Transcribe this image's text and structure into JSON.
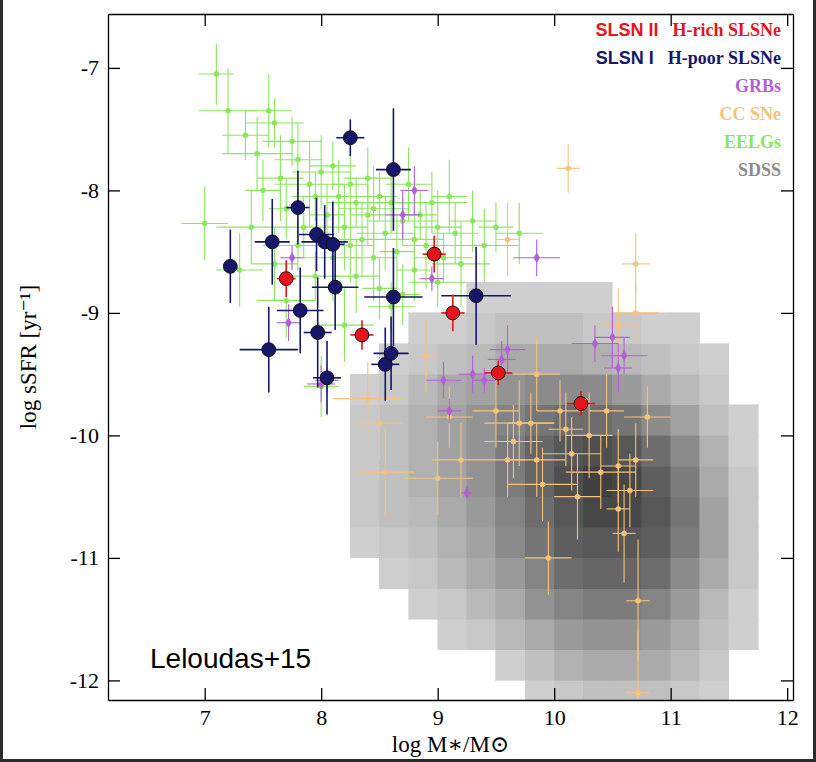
{
  "chart_data": {
    "type": "scatter",
    "xlabel": "log M∗/M⊙",
    "ylabel": "log sSFR [yr⁻¹]",
    "annotations": [
      "Leloudas+15",
      "SLSN II",
      "SLSN I"
    ],
    "xlim": [
      6.17,
      12.05
    ],
    "ylim": [
      -12.16,
      -6.56
    ],
    "xticks": [
      7,
      8,
      9,
      10,
      11,
      12
    ],
    "yticks": [
      -12,
      -11,
      -10,
      -9,
      -8,
      -7
    ],
    "grid": false,
    "legend": "upper right",
    "series": [
      {
        "name": "H-rich SLSNe",
        "color": "#e8141c",
        "marker": "circle",
        "x": [
          7.7,
          8.35,
          8.97,
          9.13,
          9.52,
          10.23
        ],
        "values": [
          -8.72,
          -9.18,
          -8.52,
          -9.0,
          -9.49,
          -9.74
        ],
        "xerr": [
          0.08,
          0.1,
          0.1,
          0.1,
          0.12,
          0.12
        ],
        "yerr": [
          0.15,
          0.12,
          0.15,
          0.15,
          0.1,
          0.1
        ]
      },
      {
        "name": "H-poor SLSNe",
        "color": "#16166b",
        "marker": "circle",
        "x": [
          7.22,
          7.58,
          7.8,
          7.82,
          7.55,
          7.96,
          8.03,
          8.1,
          8.12,
          7.97,
          8.05,
          8.25,
          8.62,
          8.62,
          8.55,
          8.6,
          9.33
        ],
        "values": [
          -8.62,
          -8.42,
          -8.14,
          -8.98,
          -9.3,
          -8.36,
          -8.42,
          -8.44,
          -8.79,
          -9.16,
          -9.53,
          -7.57,
          -7.83,
          -8.87,
          -9.42,
          -9.33,
          -8.86
        ],
        "xerr": [
          0.05,
          0.15,
          0.1,
          0.2,
          0.25,
          0.15,
          0.2,
          0.1,
          0.2,
          0.12,
          0.12,
          0.12,
          0.15,
          0.25,
          0.12,
          0.15,
          0.3
        ],
        "yerr": [
          0.3,
          0.35,
          0.3,
          0.35,
          0.35,
          0.3,
          0.3,
          0.35,
          0.35,
          0.45,
          0.3,
          0.15,
          0.5,
          0.4,
          0.3,
          0.3,
          0.4
        ]
      },
      {
        "name": "GRBs",
        "color": "#b35fd6",
        "marker": "diamond",
        "x": [
          7.72,
          7.75,
          8.0,
          8.05,
          8.7,
          8.8,
          8.95,
          9.05,
          9.3,
          9.4,
          9.55,
          9.6,
          9.85,
          10.35,
          10.5,
          10.55,
          10.6,
          9.25,
          9.1
        ],
        "values": [
          -9.08,
          -8.55,
          -9.58,
          -9.55,
          -8.2,
          -8.0,
          -8.72,
          -9.55,
          -9.5,
          -9.55,
          -9.38,
          -9.3,
          -8.55,
          -9.25,
          -9.2,
          -9.45,
          -9.35,
          -10.47,
          -9.8
        ],
        "xerr": [
          0.1,
          0.1,
          0.12,
          0.1,
          0.15,
          0.12,
          0.1,
          0.15,
          0.12,
          0.1,
          0.12,
          0.15,
          0.2,
          0.2,
          0.15,
          0.12,
          0.2,
          0.05,
          0.1
        ],
        "yerr": [
          0.15,
          0.1,
          0.15,
          0.1,
          0.2,
          0.2,
          0.1,
          0.15,
          0.15,
          0.1,
          0.15,
          0.2,
          0.15,
          0.15,
          0.25,
          0.2,
          0.15,
          0.05,
          0.1
        ]
      },
      {
        "name": "CC SNe",
        "color": "#f6c27a",
        "marker": "point",
        "x": [
          8.4,
          8.5,
          8.55,
          9.0,
          9.1,
          9.2,
          9.5,
          9.6,
          9.7,
          9.8,
          9.85,
          9.9,
          10.05,
          10.1,
          10.15,
          10.3,
          10.4,
          10.45,
          10.55,
          10.6,
          10.65,
          10.7,
          10.8,
          10.55,
          10.7,
          10.7,
          10.12,
          10.72,
          10.72,
          9.6,
          8.9,
          9.85,
          10.2,
          10.55,
          9.65,
          9.95
        ],
        "values": [
          -9.7,
          -9.9,
          -10.3,
          -10.35,
          -9.85,
          -10.2,
          -9.8,
          -10.2,
          -9.9,
          -9.9,
          -10.2,
          -10.4,
          -9.8,
          -9.95,
          -10.15,
          -10.0,
          -10.3,
          -9.8,
          -10.6,
          -10.8,
          -10.45,
          -10.2,
          -9.85,
          -9.1,
          -9.0,
          -8.6,
          -7.82,
          -11.35,
          -12.1,
          -8.4,
          -9.35,
          -9.5,
          -10.5,
          -10.25,
          -10.05,
          -11.0
        ],
        "xerr": [
          0.3,
          0.2,
          0.25,
          0.3,
          0.2,
          0.25,
          0.2,
          0.15,
          0.3,
          0.2,
          0.25,
          0.3,
          0.2,
          0.15,
          0.25,
          0.2,
          0.3,
          0.15,
          0.1,
          0.1,
          0.2,
          0.15,
          0.2,
          0.15,
          0.2,
          0.12,
          0.1,
          0.1,
          0.1,
          0.1,
          0.1,
          0.2,
          0.2,
          0.15,
          0.25,
          0.2
        ],
        "yerr": [
          0.3,
          0.3,
          0.35,
          0.3,
          0.25,
          0.3,
          0.3,
          0.3,
          0.35,
          0.25,
          0.3,
          0.3,
          0.25,
          0.3,
          0.3,
          0.35,
          0.3,
          0.3,
          0.35,
          0.4,
          0.3,
          0.3,
          0.25,
          0.3,
          0.25,
          0.25,
          0.2,
          0.5,
          0.5,
          0.3,
          0.3,
          0.3,
          0.35,
          0.3,
          0.3,
          0.3
        ]
      },
      {
        "name": "EELGs",
        "color": "#8ae65c",
        "marker": "point",
        "x": [
          7.0,
          7.1,
          7.2,
          7.35,
          7.45,
          7.5,
          7.55,
          7.6,
          7.65,
          7.7,
          7.75,
          7.8,
          7.85,
          7.9,
          7.95,
          8.0,
          8.05,
          8.1,
          8.15,
          8.2,
          8.25,
          8.3,
          8.35,
          8.4,
          8.45,
          8.5,
          8.55,
          8.6,
          8.65,
          8.7,
          8.75,
          8.8,
          8.85,
          8.9,
          8.95,
          9.0,
          9.05,
          9.1,
          9.15,
          9.2,
          9.3,
          9.4,
          9.5,
          9.7,
          8.1,
          8.3,
          8.5,
          7.8,
          7.6,
          8.0,
          8.2,
          7.95,
          8.7,
          7.4,
          8.45,
          9.0,
          8.8,
          7.3,
          8.6,
          7.7,
          8.4,
          8.25
        ],
        "values": [
          -8.27,
          -7.05,
          -7.35,
          -7.55,
          -7.7,
          -8.0,
          -7.35,
          -7.45,
          -7.9,
          -8.15,
          -7.6,
          -7.75,
          -8.3,
          -7.95,
          -8.05,
          -7.85,
          -8.2,
          -7.8,
          -8.05,
          -8.3,
          -7.95,
          -8.1,
          -8.4,
          -7.9,
          -8.15,
          -8.05,
          -8.35,
          -8.1,
          -8.5,
          -8.25,
          -7.95,
          -8.4,
          -8.2,
          -8.45,
          -8.1,
          -8.3,
          -8.55,
          -8.05,
          -8.35,
          -8.6,
          -8.25,
          -8.45,
          -8.3,
          -8.35,
          -8.55,
          -8.7,
          -8.8,
          -8.45,
          -8.6,
          -9.6,
          -9.1,
          -8.7,
          -8.85,
          -8.3,
          -8.55,
          -8.75,
          -8.65,
          -8.65,
          -8.95,
          -8.9,
          -8.2,
          -8.45
        ],
        "xerr": [
          0.2,
          0.15,
          0.25,
          0.2,
          0.3,
          0.15,
          0.2,
          0.25,
          0.2,
          0.15,
          0.25,
          0.2,
          0.15,
          0.3,
          0.2,
          0.25,
          0.15,
          0.2,
          0.3,
          0.2,
          0.15,
          0.25,
          0.2,
          0.2,
          0.3,
          0.15,
          0.25,
          0.2,
          0.15,
          0.3,
          0.2,
          0.25,
          0.15,
          0.2,
          0.3,
          0.2,
          0.25,
          0.15,
          0.2,
          0.25,
          0.2,
          0.3,
          0.15,
          0.2,
          0.25,
          0.2,
          0.15,
          0.3,
          0.2,
          0.15,
          0.25,
          0.2,
          0.15,
          0.3,
          0.2,
          0.25,
          0.15,
          0.2,
          0.2,
          0.25,
          0.15,
          0.2
        ],
        "yerr": [
          0.3,
          0.25,
          0.35,
          0.2,
          0.3,
          0.25,
          0.3,
          0.2,
          0.35,
          0.25,
          0.2,
          0.3,
          0.25,
          0.35,
          0.2,
          0.3,
          0.25,
          0.2,
          0.3,
          0.35,
          0.25,
          0.2,
          0.3,
          0.25,
          0.35,
          0.2,
          0.3,
          0.25,
          0.3,
          0.2,
          0.3,
          0.25,
          0.2,
          0.35,
          0.25,
          0.3,
          0.2,
          0.3,
          0.25,
          0.35,
          0.25,
          0.3,
          0.2,
          0.25,
          0.35,
          0.3,
          0.25,
          0.2,
          0.3,
          0.25,
          0.3,
          0.2,
          0.25,
          0.3,
          0.35,
          0.2,
          0.25,
          0.3,
          0.2,
          0.3,
          0.25,
          0.3
        ]
      },
      {
        "name": "SDSS",
        "color": "#8c8c8c",
        "type": "heatmap",
        "x_bins": [
          8.25,
          8.5,
          8.75,
          9,
          9.25,
          9.5,
          9.75,
          10,
          10.25,
          10.5,
          10.75,
          11,
          11.25,
          11.5,
          11.75
        ],
        "y_bins": [
          -12.25,
          -12,
          -11.75,
          -11.5,
          -11.25,
          -11,
          -10.75,
          -10.5,
          -10.25,
          -10,
          -9.75,
          -9.5,
          -9.25,
          -9,
          -8.75
        ],
        "density": [
          [
            0,
            0,
            0,
            0,
            0,
            0,
            0.05,
            0.1,
            0.15,
            0.15,
            0.15,
            0.1,
            0.05,
            0
          ],
          [
            0,
            0,
            0,
            0,
            0,
            0.05,
            0.15,
            0.25,
            0.3,
            0.3,
            0.3,
            0.2,
            0.1,
            0
          ],
          [
            0,
            0,
            0,
            0.05,
            0.1,
            0.2,
            0.3,
            0.4,
            0.45,
            0.45,
            0.4,
            0.3,
            0.15,
            0.05
          ],
          [
            0,
            0,
            0.05,
            0.1,
            0.2,
            0.3,
            0.45,
            0.55,
            0.6,
            0.6,
            0.55,
            0.4,
            0.2,
            0.05
          ],
          [
            0,
            0.05,
            0.1,
            0.2,
            0.3,
            0.4,
            0.55,
            0.7,
            0.75,
            0.75,
            0.7,
            0.5,
            0.3,
            0.1
          ],
          [
            0.05,
            0.1,
            0.15,
            0.25,
            0.35,
            0.5,
            0.65,
            0.8,
            0.85,
            0.85,
            0.8,
            0.6,
            0.35,
            0.1
          ],
          [
            0.1,
            0.15,
            0.2,
            0.3,
            0.4,
            0.55,
            0.7,
            0.85,
            0.95,
            0.95,
            0.85,
            0.65,
            0.35,
            0.1
          ],
          [
            0.1,
            0.15,
            0.25,
            0.35,
            0.45,
            0.6,
            0.75,
            0.9,
            1,
            0.95,
            0.8,
            0.6,
            0.3,
            0.1
          ],
          [
            0.1,
            0.15,
            0.25,
            0.35,
            0.45,
            0.6,
            0.75,
            0.85,
            0.9,
            0.85,
            0.7,
            0.5,
            0.25,
            0.05
          ],
          [
            0.1,
            0.15,
            0.25,
            0.35,
            0.45,
            0.55,
            0.65,
            0.7,
            0.7,
            0.65,
            0.5,
            0.35,
            0.15,
            0.05
          ],
          [
            0.05,
            0.1,
            0.2,
            0.3,
            0.35,
            0.45,
            0.5,
            0.5,
            0.5,
            0.4,
            0.3,
            0.2,
            0.1,
            0
          ],
          [
            0,
            0.05,
            0.1,
            0.15,
            0.2,
            0.3,
            0.3,
            0.3,
            0.25,
            0.2,
            0.15,
            0.1,
            0.05,
            0
          ],
          [
            0,
            0,
            0.05,
            0.05,
            0.1,
            0.15,
            0.15,
            0.15,
            0.1,
            0.1,
            0.05,
            0.05,
            0,
            0
          ],
          [
            0,
            0,
            0,
            0,
            0.05,
            0.05,
            0.05,
            0.05,
            0.05,
            0,
            0,
            0,
            0,
            0
          ]
        ]
      }
    ]
  }
}
